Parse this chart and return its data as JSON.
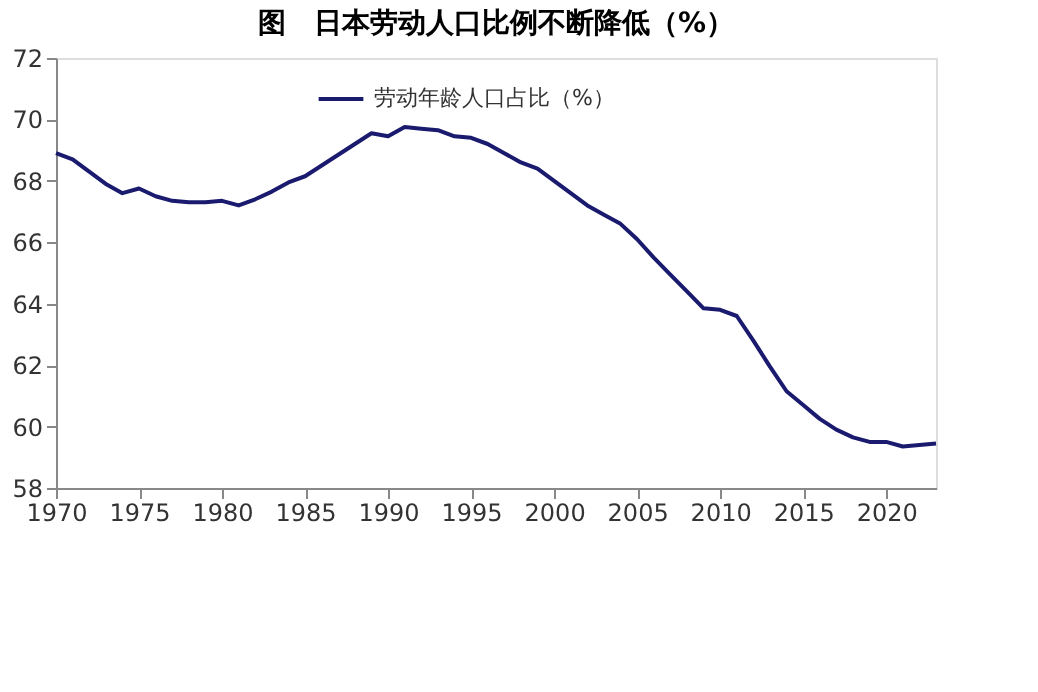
{
  "chart_data": {
    "type": "line",
    "title": "图　日本劳动人口比例不断降低（%）",
    "x": [
      1970,
      1971,
      1972,
      1973,
      1974,
      1975,
      1976,
      1977,
      1978,
      1979,
      1980,
      1981,
      1982,
      1983,
      1984,
      1985,
      1986,
      1987,
      1988,
      1989,
      1990,
      1991,
      1992,
      1993,
      1994,
      1995,
      1996,
      1997,
      1998,
      1999,
      2000,
      2001,
      2002,
      2003,
      2004,
      2005,
      2006,
      2007,
      2008,
      2009,
      2010,
      2011,
      2012,
      2013,
      2014,
      2015,
      2016,
      2017,
      2018,
      2019,
      2020,
      2021,
      2022,
      2023
    ],
    "series": [
      {
        "name": "劳动年龄人口占比（%）",
        "color": "#1a1a6e",
        "values": [
          68.9,
          68.7,
          68.3,
          67.9,
          67.6,
          67.75,
          67.5,
          67.35,
          67.3,
          67.3,
          67.35,
          67.2,
          67.4,
          67.65,
          67.95,
          68.15,
          68.5,
          68.85,
          69.2,
          69.55,
          69.45,
          69.75,
          69.7,
          69.65,
          69.45,
          69.4,
          69.2,
          68.9,
          68.6,
          68.4,
          68.0,
          67.6,
          67.2,
          66.9,
          66.6,
          66.1,
          65.5,
          64.95,
          64.4,
          63.85,
          63.8,
          63.6,
          62.8,
          61.95,
          61.15,
          60.7,
          60.25,
          59.9,
          59.65,
          59.5,
          59.5,
          59.35,
          59.4,
          59.45
        ]
      }
    ],
    "xlim": [
      1970,
      2023
    ],
    "xticks": [
      1970,
      1975,
      1980,
      1985,
      1990,
      1995,
      2000,
      2005,
      2010,
      2015,
      2020
    ],
    "ylim": [
      58,
      72
    ],
    "yticks": [
      58,
      60,
      62,
      64,
      66,
      68,
      70,
      72
    ],
    "grid": false,
    "legend": "top",
    "marker": "none",
    "line_style": "solid"
  }
}
